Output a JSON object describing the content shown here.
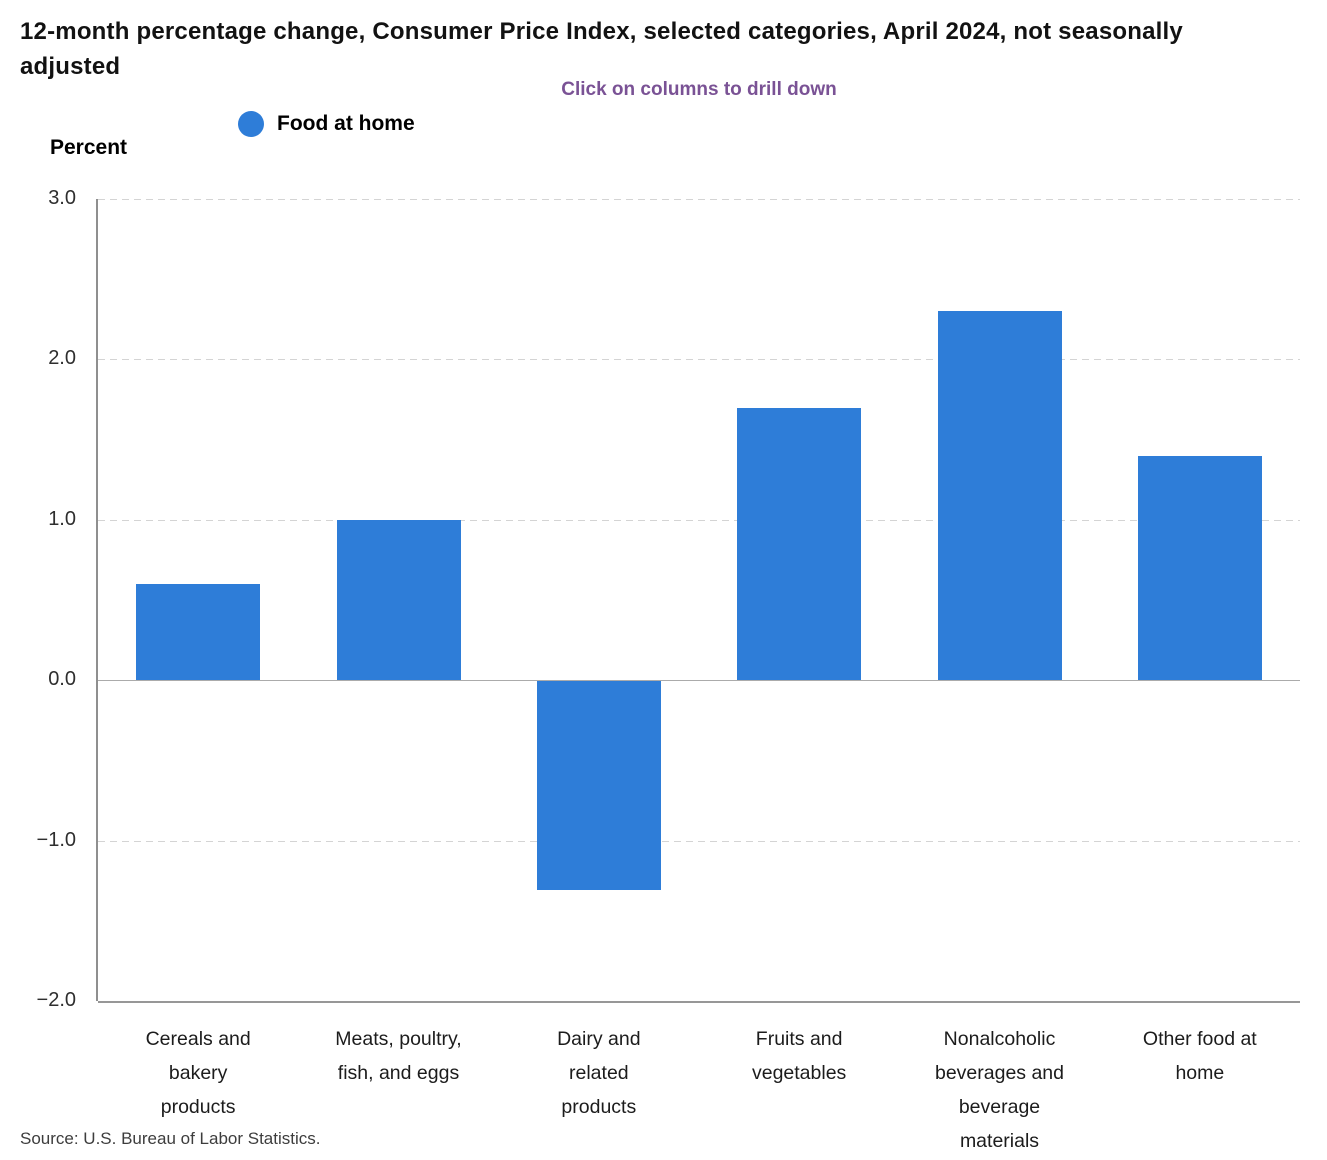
{
  "title": "12-month percentage change, Consumer Price Index, selected categories, April 2024, not seasonally adjusted",
  "subtitle": "Click on columns to drill down",
  "legend": {
    "label": "Food at home"
  },
  "y_axis_title": "Percent",
  "source": "Source: U.S. Bureau of Labor Statistics.",
  "colors": {
    "bar": "#2e7dd8",
    "subtitle": "#7a5295",
    "grid": "#d4d4d4",
    "zero_line": "#ababab",
    "axis_line": "#8f8f8f",
    "title_text": "#121212"
  },
  "chart_data": {
    "type": "bar",
    "title": "12-month percentage change, Consumer Price Index, selected categories, April 2024, not seasonally adjusted",
    "subtitle": "Click on columns to drill down",
    "series_name": "Food at home",
    "categories": [
      "Cereals and bakery products",
      "Meats, poultry, fish, and eggs",
      "Dairy and related products",
      "Fruits and vegetables",
      "Nonalcoholic beverages and beverage materials",
      "Other food at home"
    ],
    "category_label_lines": [
      [
        "Cereals and",
        "bakery",
        "products"
      ],
      [
        "Meats, poultry,",
        "fish, and eggs"
      ],
      [
        "Dairy and",
        "related",
        "products"
      ],
      [
        "Fruits and",
        "vegetables"
      ],
      [
        "Nonalcoholic",
        "beverages and",
        "beverage",
        "materials"
      ],
      [
        "Other food at",
        "home"
      ]
    ],
    "values": [
      0.6,
      1.0,
      -1.3,
      1.7,
      2.3,
      1.4
    ],
    "ylabel": "Percent",
    "ylim": [
      -2.0,
      3.0
    ],
    "yticks": [
      3.0,
      2.0,
      1.0,
      0.0,
      -1.0,
      -2.0
    ],
    "ytick_labels": [
      "3.0",
      "2.0",
      "1.0",
      "0.0",
      "−1.0",
      "−2.0"
    ],
    "grid": "horizontal dashed",
    "legend_position": "top-left",
    "bar_color": "#2e7dd8"
  }
}
